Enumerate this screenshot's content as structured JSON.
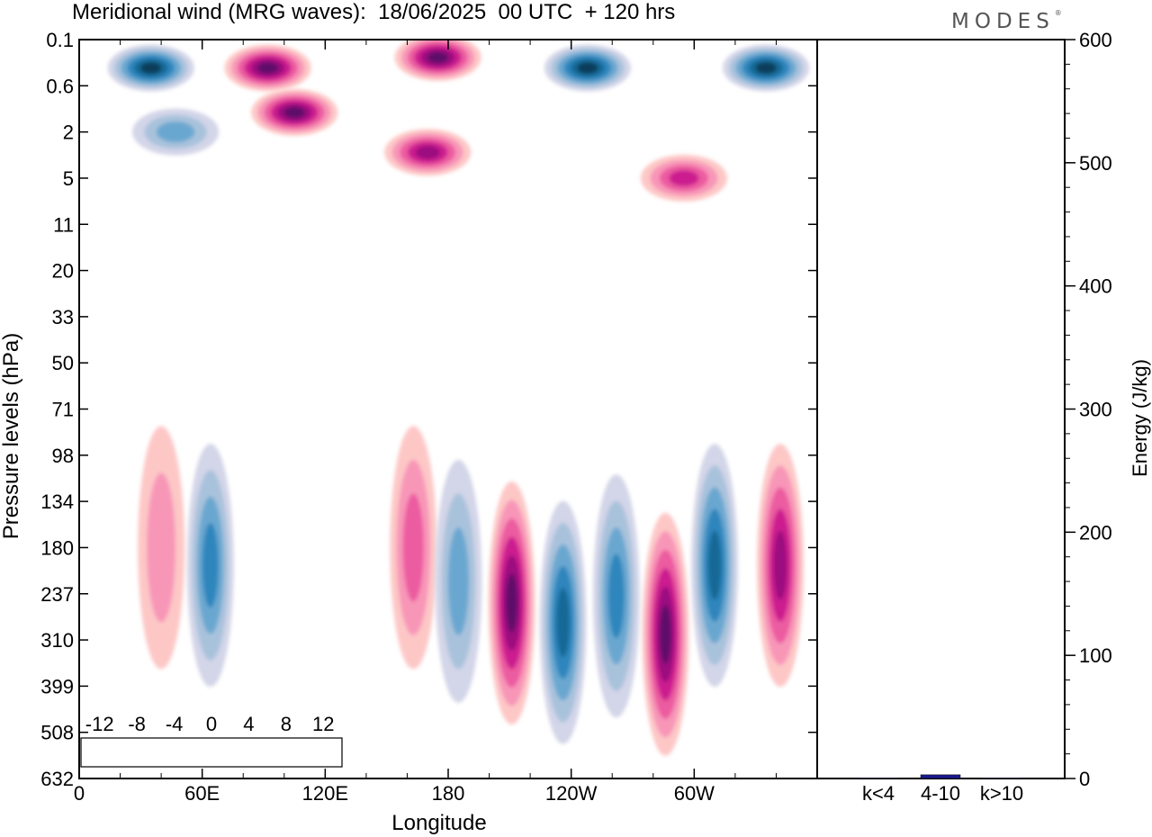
{
  "header": {
    "title": "Meridional wind (MRG waves):  18/06/2025  00 UTC  + 120 hrs",
    "logo": "MODES",
    "logo_mark": "®"
  },
  "chart_data": [
    {
      "type": "heatmap",
      "title": "Meridional wind (MRG waves):  18/06/2025  00 UTC  + 120 hrs",
      "xlabel": "Longitude",
      "ylabel": "Pressure levels (hPa)",
      "x_ticks": [
        "0",
        "60E",
        "120E",
        "180",
        "120W",
        "60W"
      ],
      "x_tick_deg": [
        0,
        60,
        120,
        180,
        240,
        300
      ],
      "xlim": [
        0,
        360
      ],
      "y_ticks": [
        "0.1",
        "0.6",
        "2",
        "5",
        "11",
        "20",
        "33",
        "50",
        "71",
        "98",
        "134",
        "180",
        "237",
        "310",
        "399",
        "508",
        "632"
      ],
      "colorbar": {
        "labels": [
          "-12",
          "-8",
          "-4",
          "0",
          "4",
          "8",
          "12"
        ],
        "colors": [
          "#0e3c5a",
          "#146996",
          "#2e86bd",
          "#6aa7d0",
          "#a9c2dc",
          "#d3d5e8",
          "#ffffff",
          "#ffffff",
          "#fdc7c6",
          "#f896b8",
          "#ec5ca0",
          "#cc1c8f",
          "#9c117f",
          "#5e0f6a"
        ]
      },
      "features": [
        {
          "lon": 35,
          "level": 0.3,
          "sign": "negative",
          "peak": -14
        },
        {
          "lon": 92,
          "level": 0.3,
          "sign": "positive",
          "peak": 14
        },
        {
          "lon": 175,
          "level": 0.2,
          "sign": "positive",
          "peak": 14
        },
        {
          "lon": 248,
          "level": 0.3,
          "sign": "negative",
          "peak": -13
        },
        {
          "lon": 335,
          "level": 0.3,
          "sign": "negative",
          "peak": -14
        },
        {
          "lon": 105,
          "level": 1.2,
          "sign": "positive",
          "peak": 13
        },
        {
          "lon": 170,
          "level": 3,
          "sign": "positive",
          "peak": 9
        },
        {
          "lon": 47,
          "level": 2,
          "sign": "negative",
          "peak": -6
        },
        {
          "lon": 295,
          "level": 5,
          "sign": "positive",
          "peak": 8
        },
        {
          "lon": 64,
          "level": 200,
          "sign": "negative",
          "peak": -7
        },
        {
          "lon": 40,
          "level": 180,
          "sign": "positive",
          "peak": 4
        },
        {
          "lon": 163,
          "level": 180,
          "sign": "positive",
          "peak": 6
        },
        {
          "lon": 185,
          "level": 220,
          "sign": "negative",
          "peak": -5
        },
        {
          "lon": 211,
          "level": 250,
          "sign": "positive",
          "peak": 14
        },
        {
          "lon": 236,
          "level": 280,
          "sign": "negative",
          "peak": -9
        },
        {
          "lon": 262,
          "level": 240,
          "sign": "negative",
          "peak": -8
        },
        {
          "lon": 286,
          "level": 300,
          "sign": "positive",
          "peak": 14
        },
        {
          "lon": 310,
          "level": 200,
          "sign": "negative",
          "peak": -10
        },
        {
          "lon": 342,
          "level": 200,
          "sign": "positive",
          "peak": 10
        }
      ]
    },
    {
      "type": "bar",
      "ylabel": "Energy (J/kg)",
      "categories": [
        "k<4",
        "4-10",
        "k>10"
      ],
      "values": [
        0.5,
        3,
        0.5
      ],
      "ylim": [
        0,
        600
      ],
      "y_ticks": [
        "0",
        "100",
        "200",
        "300",
        "400",
        "500",
        "600"
      ],
      "bar_color": "#1a1a8c"
    }
  ]
}
